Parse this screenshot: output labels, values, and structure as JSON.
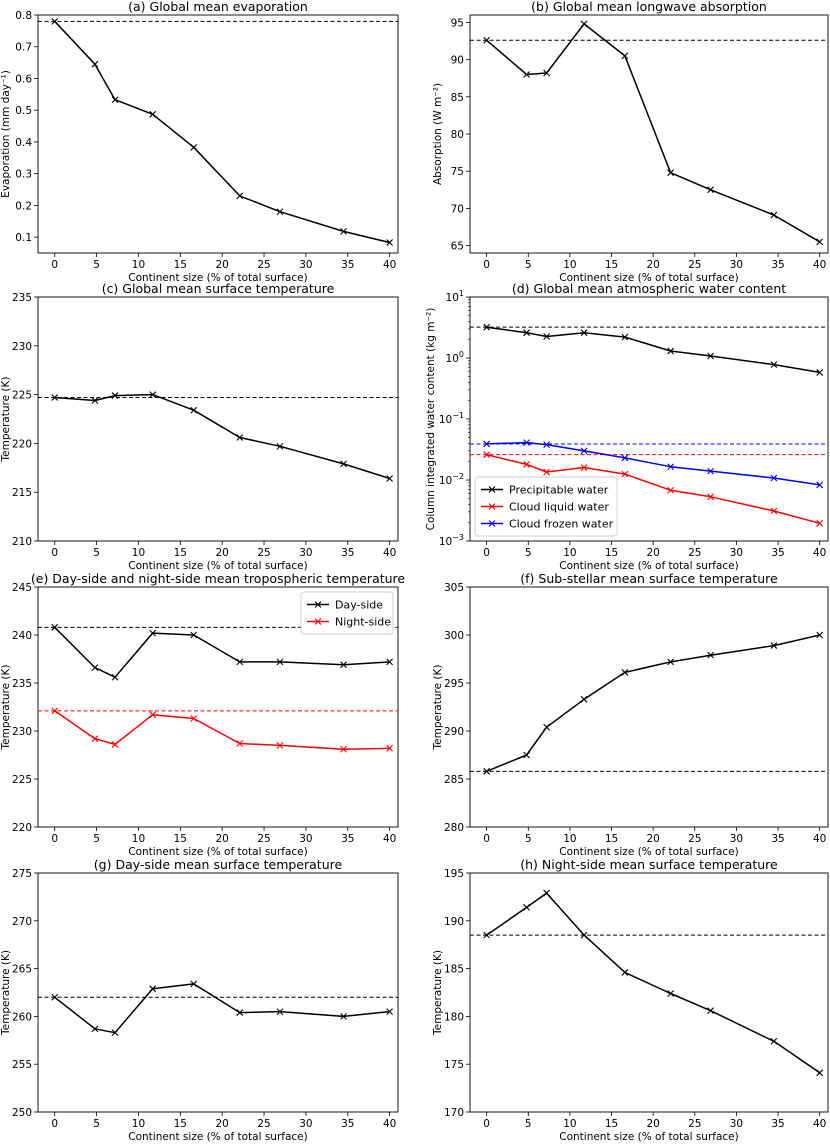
{
  "chart_data": [
    {
      "type": "line",
      "title": "(a) Global mean evaporation",
      "xlabel": "Continent size (% of total surface)",
      "ylabel": "Evaporation (mm day⁻¹)",
      "xlim": [
        -2,
        41
      ],
      "ylim": [
        0.05,
        0.8
      ],
      "xticks": [
        0,
        5,
        10,
        15,
        20,
        25,
        30,
        35,
        40
      ],
      "yticks": [
        0.1,
        0.2,
        0.3,
        0.4,
        0.5,
        0.6,
        0.7,
        0.8
      ],
      "x": [
        0,
        4.8,
        7.2,
        11.7,
        16.6,
        22.1,
        26.9,
        34.5,
        40
      ],
      "series": [
        {
          "name": "Global mean evaporation",
          "color": "#000000",
          "values": [
            0.78,
            0.645,
            0.533,
            0.487,
            0.383,
            0.23,
            0.18,
            0.118,
            0.083
          ],
          "reference": 0.78
        }
      ]
    },
    {
      "type": "line",
      "title": "(b) Global mean longwave absorption",
      "xlabel": "Continent size (% of total surface)",
      "ylabel": "Absorption (W m⁻²)",
      "xlim": [
        -2,
        41
      ],
      "ylim": [
        64,
        96
      ],
      "xticks": [
        0,
        5,
        10,
        15,
        20,
        25,
        30,
        35,
        40
      ],
      "yticks": [
        65,
        70,
        75,
        80,
        85,
        90,
        95
      ],
      "x": [
        0,
        4.8,
        7.2,
        11.7,
        16.6,
        22.1,
        26.9,
        34.5,
        40
      ],
      "series": [
        {
          "name": "Longwave absorption",
          "color": "#000000",
          "values": [
            92.6,
            88.0,
            88.2,
            94.8,
            90.5,
            74.8,
            72.5,
            69.1,
            65.5
          ],
          "reference": 92.6
        }
      ]
    },
    {
      "type": "line",
      "title": "(c) Global mean surface temperature",
      "xlabel": "Continent size (% of total surface)",
      "ylabel": "Temperature (K)",
      "xlim": [
        -2,
        41
      ],
      "ylim": [
        210,
        235
      ],
      "xticks": [
        0,
        5,
        10,
        15,
        20,
        25,
        30,
        35,
        40
      ],
      "yticks": [
        210,
        215,
        220,
        225,
        230,
        235
      ],
      "x": [
        0,
        4.8,
        7.2,
        11.7,
        16.6,
        22.1,
        26.9,
        34.5,
        40
      ],
      "series": [
        {
          "name": "Surface temperature",
          "color": "#000000",
          "values": [
            224.7,
            224.4,
            224.9,
            225.0,
            223.4,
            220.6,
            219.7,
            217.9,
            216.4
          ],
          "reference": 224.7
        }
      ]
    },
    {
      "type": "line",
      "scale": "log",
      "title": "(d) Global mean atmospheric water content",
      "xlabel": "Continent size (% of total surface)",
      "ylabel": "Column integrated water content (kg m⁻²)",
      "xlim": [
        -2,
        41
      ],
      "ylim": [
        0.001,
        10
      ],
      "xticks": [
        0,
        5,
        10,
        15,
        20,
        25,
        30,
        35,
        40
      ],
      "ytick_exponents": [
        -3,
        -2,
        -1,
        0,
        1
      ],
      "legend_position": "lower-left",
      "x": [
        0,
        4.8,
        7.2,
        11.7,
        16.6,
        22.1,
        26.9,
        34.5,
        40
      ],
      "series": [
        {
          "name": "Precipitable water",
          "color": "#000000",
          "values": [
            3.2,
            2.6,
            2.25,
            2.6,
            2.2,
            1.3,
            1.08,
            0.78,
            0.58
          ],
          "reference": 3.2
        },
        {
          "name": "Cloud liquid water",
          "color": "#ff0000",
          "values": [
            0.026,
            0.018,
            0.0135,
            0.016,
            0.0125,
            0.0068,
            0.0053,
            0.0031,
            0.00195
          ],
          "reference": 0.026
        },
        {
          "name": "Cloud frozen water",
          "color": "#0000ff",
          "values": [
            0.039,
            0.041,
            0.038,
            0.03,
            0.023,
            0.0165,
            0.014,
            0.0108,
            0.0083
          ],
          "reference": 0.039
        }
      ]
    },
    {
      "type": "line",
      "title": "(e) Day-side and night-side mean tropospheric temperature",
      "xlabel": "Continent size (% of total surface)",
      "ylabel": "Temperature (K)",
      "xlim": [
        -2,
        41
      ],
      "ylim": [
        220,
        245
      ],
      "xticks": [
        0,
        5,
        10,
        15,
        20,
        25,
        30,
        35,
        40
      ],
      "yticks": [
        220,
        225,
        230,
        235,
        240,
        245
      ],
      "legend_position": "top-right",
      "x": [
        0,
        4.8,
        7.2,
        11.7,
        16.6,
        22.1,
        26.9,
        34.5,
        40
      ],
      "series": [
        {
          "name": "Day-side",
          "color": "#000000",
          "values": [
            240.8,
            236.6,
            235.6,
            240.2,
            240.0,
            237.2,
            237.2,
            236.9,
            237.2
          ],
          "reference": 240.8
        },
        {
          "name": "Night-side",
          "color": "#ff0000",
          "values": [
            232.1,
            229.2,
            228.6,
            231.7,
            231.3,
            228.7,
            228.5,
            228.1,
            228.2
          ],
          "reference": 232.1
        }
      ]
    },
    {
      "type": "line",
      "title": "(f) Sub-stellar mean surface temperature",
      "xlabel": "Continent size (% of total surface)",
      "ylabel": "Temperature (K)",
      "xlim": [
        -2,
        41
      ],
      "ylim": [
        280,
        305
      ],
      "xticks": [
        0,
        5,
        10,
        15,
        20,
        25,
        30,
        35,
        40
      ],
      "yticks": [
        280,
        285,
        290,
        295,
        300,
        305
      ],
      "x": [
        0,
        4.8,
        7.2,
        11.7,
        16.6,
        22.1,
        26.9,
        34.5,
        40
      ],
      "series": [
        {
          "name": "Sub-stellar surface temperature",
          "color": "#000000",
          "values": [
            285.8,
            287.5,
            290.4,
            293.3,
            296.1,
            297.2,
            297.9,
            298.9,
            300.0
          ],
          "reference": 285.8
        }
      ]
    },
    {
      "type": "line",
      "title": "(g) Day-side mean surface temperature",
      "xlabel": "Continent size (% of total surface)",
      "ylabel": "Temperature (K)",
      "xlim": [
        -2,
        41
      ],
      "ylim": [
        250,
        275
      ],
      "xticks": [
        0,
        5,
        10,
        15,
        20,
        25,
        30,
        35,
        40
      ],
      "yticks": [
        250,
        255,
        260,
        265,
        270,
        275
      ],
      "x": [
        0,
        4.8,
        7.2,
        11.7,
        16.6,
        22.1,
        26.9,
        34.5,
        40
      ],
      "series": [
        {
          "name": "Day-side surface temperature",
          "color": "#000000",
          "values": [
            262.0,
            258.7,
            258.3,
            262.9,
            263.4,
            260.4,
            260.5,
            260.0,
            260.5
          ],
          "reference": 262.0
        }
      ]
    },
    {
      "type": "line",
      "title": "(h) Night-side mean surface temperature",
      "xlabel": "Continent size (% of total surface)",
      "ylabel": "Temperature (K)",
      "xlim": [
        -2,
        41
      ],
      "ylim": [
        170,
        195
      ],
      "xticks": [
        0,
        5,
        10,
        15,
        20,
        25,
        30,
        35,
        40
      ],
      "yticks": [
        170,
        175,
        180,
        185,
        190,
        195
      ],
      "x": [
        0,
        4.8,
        7.2,
        11.7,
        16.6,
        22.1,
        26.9,
        34.5,
        40
      ],
      "series": [
        {
          "name": "Night-side surface temperature",
          "color": "#000000",
          "values": [
            188.5,
            191.4,
            192.9,
            188.5,
            184.6,
            182.4,
            180.6,
            177.4,
            174.1
          ],
          "reference": 188.5
        }
      ]
    }
  ]
}
